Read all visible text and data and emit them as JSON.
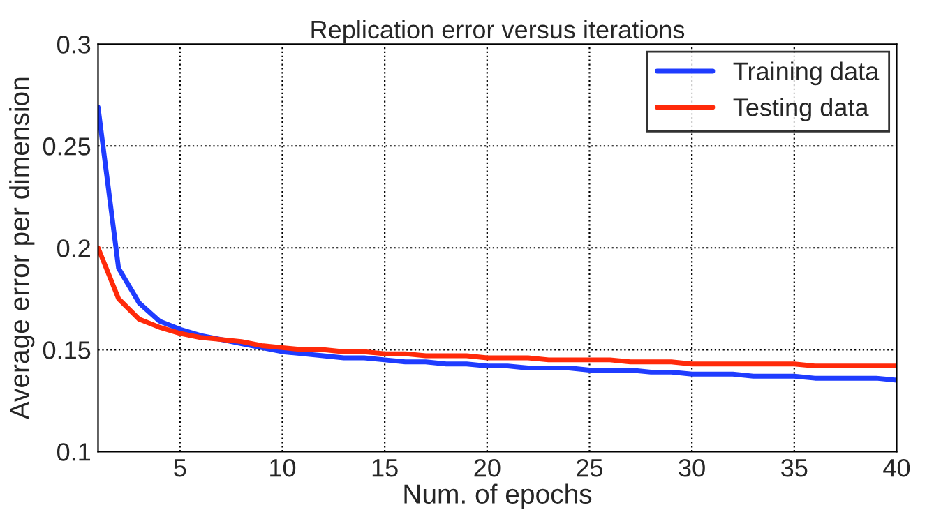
{
  "chart_data": {
    "type": "line",
    "title": "Replication error versus iterations",
    "xlabel": "Num. of epochs",
    "ylabel": "Average error per dimension",
    "x": [
      1,
      2,
      3,
      4,
      5,
      6,
      7,
      8,
      9,
      10,
      11,
      12,
      13,
      14,
      15,
      16,
      17,
      18,
      19,
      20,
      21,
      22,
      23,
      24,
      25,
      26,
      27,
      28,
      29,
      30,
      31,
      32,
      33,
      34,
      35,
      36,
      37,
      38,
      39,
      40
    ],
    "series": [
      {
        "name": "Training data",
        "color": "#1f3cff",
        "values": [
          0.269,
          0.19,
          0.173,
          0.164,
          0.16,
          0.157,
          0.155,
          0.153,
          0.151,
          0.149,
          0.148,
          0.147,
          0.146,
          0.146,
          0.145,
          0.144,
          0.144,
          0.143,
          0.143,
          0.142,
          0.142,
          0.141,
          0.141,
          0.141,
          0.14,
          0.14,
          0.14,
          0.139,
          0.139,
          0.138,
          0.138,
          0.138,
          0.137,
          0.137,
          0.137,
          0.136,
          0.136,
          0.136,
          0.136,
          0.135
        ]
      },
      {
        "name": "Testing data",
        "color": "#ff2a0a",
        "values": [
          0.2,
          0.175,
          0.165,
          0.161,
          0.158,
          0.156,
          0.155,
          0.154,
          0.152,
          0.151,
          0.15,
          0.15,
          0.149,
          0.149,
          0.148,
          0.148,
          0.147,
          0.147,
          0.147,
          0.146,
          0.146,
          0.146,
          0.145,
          0.145,
          0.145,
          0.145,
          0.144,
          0.144,
          0.144,
          0.143,
          0.143,
          0.143,
          0.143,
          0.143,
          0.143,
          0.142,
          0.142,
          0.142,
          0.142,
          0.142
        ]
      }
    ],
    "xlim": [
      1,
      40
    ],
    "xticks": [
      5,
      10,
      15,
      20,
      25,
      30,
      35,
      40
    ],
    "ylim": [
      0.1,
      0.3
    ],
    "yticks": [
      0.1,
      0.15,
      0.2,
      0.25,
      0.3
    ],
    "grid": true,
    "legend": "top right",
    "marker": "none",
    "line_style": "solid"
  }
}
